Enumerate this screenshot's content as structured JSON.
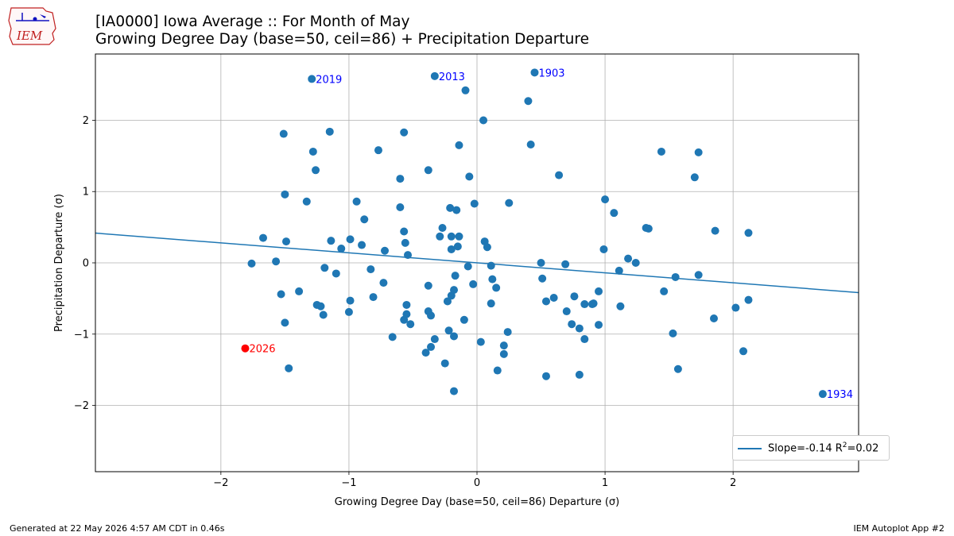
{
  "header": {
    "logo_text": "IEM",
    "title_line1": "[IA0000] Iowa Average :: For Month of May",
    "title_line2": "Growing Degree Day (base=50, ceil=86) + Precipitation Departure"
  },
  "footer": {
    "generated": "Generated at 22 May 2026 4:57 AM CDT in 0.46s",
    "app": "IEM Autoplot App #2"
  },
  "legend": {
    "slope_label": "Slope=-0.14 R",
    "r2_sup": "2",
    "r2_value": "=0.02"
  },
  "colors": {
    "point": "#1f77b4",
    "highlight": "#ff0000",
    "annotation": "#0000ff",
    "grid": "#b0b0b0",
    "fit_line": "#1f77b4"
  },
  "chart_data": {
    "type": "scatter",
    "xlabel": "Growing Degree Day (base=50, ceil=86) Departure (σ)",
    "ylabel": "Precipitation Departure (σ)",
    "xlim": [
      -2.98,
      2.98
    ],
    "ylim": [
      -2.93,
      2.93
    ],
    "xticks": [
      -2,
      -1,
      0,
      1,
      2
    ],
    "xtick_labels": [
      "−2",
      "−1",
      "0",
      "1",
      "2"
    ],
    "yticks": [
      -2,
      -1,
      0,
      1,
      2
    ],
    "ytick_labels": [
      "−2",
      "−1",
      "0",
      "1",
      "2"
    ],
    "grid": true,
    "fit": {
      "slope": -0.14,
      "r2": 0.02,
      "intercept": 0.0
    },
    "highlight": {
      "year": "2026",
      "x": -1.81,
      "y": -1.2
    },
    "annotations": [
      {
        "label": "2019",
        "x": -1.29,
        "y": 2.58
      },
      {
        "label": "2013",
        "x": -0.33,
        "y": 2.62
      },
      {
        "label": "1903",
        "x": 0.45,
        "y": 2.67
      },
      {
        "label": "1934",
        "x": 2.7,
        "y": -1.84
      }
    ],
    "points": [
      [
        -1.29,
        2.58
      ],
      [
        -0.33,
        2.62
      ],
      [
        0.45,
        2.67
      ],
      [
        2.7,
        -1.84
      ],
      [
        -0.09,
        2.42
      ],
      [
        0.4,
        2.27
      ],
      [
        0.05,
        2.0
      ],
      [
        -1.51,
        1.81
      ],
      [
        -1.15,
        1.84
      ],
      [
        -0.57,
        1.83
      ],
      [
        -1.28,
        1.56
      ],
      [
        -0.77,
        1.58
      ],
      [
        -0.14,
        1.65
      ],
      [
        0.42,
        1.66
      ],
      [
        1.44,
        1.56
      ],
      [
        1.73,
        1.55
      ],
      [
        -1.26,
        1.3
      ],
      [
        -0.38,
        1.3
      ],
      [
        -0.6,
        1.18
      ],
      [
        -0.06,
        1.21
      ],
      [
        0.64,
        1.23
      ],
      [
        1.7,
        1.2
      ],
      [
        -1.5,
        0.96
      ],
      [
        -1.33,
        0.86
      ],
      [
        -0.94,
        0.86
      ],
      [
        -0.6,
        0.78
      ],
      [
        -0.21,
        0.77
      ],
      [
        -0.16,
        0.74
      ],
      [
        -0.02,
        0.83
      ],
      [
        0.25,
        0.84
      ],
      [
        1.0,
        0.89
      ],
      [
        1.07,
        0.7
      ],
      [
        -0.88,
        0.61
      ],
      [
        -1.67,
        0.35
      ],
      [
        -1.49,
        0.3
      ],
      [
        -1.14,
        0.31
      ],
      [
        -0.99,
        0.33
      ],
      [
        -0.9,
        0.25
      ],
      [
        -0.57,
        0.44
      ],
      [
        -0.56,
        0.28
      ],
      [
        -0.27,
        0.49
      ],
      [
        -0.29,
        0.37
      ],
      [
        -0.2,
        0.37
      ],
      [
        -0.14,
        0.37
      ],
      [
        0.06,
        0.3
      ],
      [
        1.32,
        0.49
      ],
      [
        1.34,
        0.48
      ],
      [
        1.86,
        0.45
      ],
      [
        2.12,
        0.42
      ],
      [
        -1.06,
        0.2
      ],
      [
        -0.72,
        0.17
      ],
      [
        -0.54,
        0.11
      ],
      [
        -0.2,
        0.19
      ],
      [
        -0.15,
        0.23
      ],
      [
        0.08,
        0.22
      ],
      [
        0.99,
        0.19
      ],
      [
        -1.76,
        -0.01
      ],
      [
        -1.57,
        0.02
      ],
      [
        -1.19,
        -0.07
      ],
      [
        -1.1,
        -0.15
      ],
      [
        -0.83,
        -0.09
      ],
      [
        -0.07,
        -0.05
      ],
      [
        0.11,
        -0.04
      ],
      [
        0.5,
        0.0
      ],
      [
        0.69,
        -0.02
      ],
      [
        1.18,
        0.06
      ],
      [
        1.24,
        0.0
      ],
      [
        -1.53,
        -0.44
      ],
      [
        -1.39,
        -0.4
      ],
      [
        -1.25,
        -0.59
      ],
      [
        -1.22,
        -0.61
      ],
      [
        -1.2,
        -0.73
      ],
      [
        -0.99,
        -0.53
      ],
      [
        -1.0,
        -0.69
      ],
      [
        -0.81,
        -0.48
      ],
      [
        -0.73,
        -0.28
      ],
      [
        -0.55,
        -0.59
      ],
      [
        -0.57,
        -0.8
      ],
      [
        -0.55,
        -0.72
      ],
      [
        -0.52,
        -0.86
      ],
      [
        -0.38,
        -0.32
      ],
      [
        -0.38,
        -0.68
      ],
      [
        -0.36,
        -0.74
      ],
      [
        -0.23,
        -0.54
      ],
      [
        -0.2,
        -0.46
      ],
      [
        -0.18,
        -0.38
      ],
      [
        -0.17,
        -0.18
      ],
      [
        -0.1,
        -0.8
      ],
      [
        -0.03,
        -0.3
      ],
      [
        0.12,
        -0.23
      ],
      [
        0.15,
        -0.35
      ],
      [
        0.11,
        -0.57
      ],
      [
        0.51,
        -0.22
      ],
      [
        0.54,
        -0.54
      ],
      [
        0.6,
        -0.49
      ],
      [
        0.76,
        -0.47
      ],
      [
        0.7,
        -0.68
      ],
      [
        0.74,
        -0.86
      ],
      [
        0.8,
        -0.92
      ],
      [
        0.84,
        -0.58
      ],
      [
        0.9,
        -0.58
      ],
      [
        0.91,
        -0.57
      ],
      [
        0.95,
        -0.4
      ],
      [
        0.95,
        -0.87
      ],
      [
        1.12,
        -0.61
      ],
      [
        1.11,
        -0.11
      ],
      [
        1.46,
        -0.4
      ],
      [
        1.55,
        -0.2
      ],
      [
        1.73,
        -0.17
      ],
      [
        1.85,
        -0.78
      ],
      [
        2.02,
        -0.63
      ],
      [
        2.12,
        -0.52
      ],
      [
        -1.5,
        -0.84
      ],
      [
        -0.66,
        -1.04
      ],
      [
        -0.4,
        -1.26
      ],
      [
        -0.36,
        -1.18
      ],
      [
        -0.33,
        -1.07
      ],
      [
        -0.22,
        -0.95
      ],
      [
        -0.18,
        -1.03
      ],
      [
        0.03,
        -1.11
      ],
      [
        0.21,
        -1.16
      ],
      [
        0.21,
        -1.28
      ],
      [
        0.24,
        -0.97
      ],
      [
        0.84,
        -1.07
      ],
      [
        1.53,
        -0.99
      ],
      [
        2.08,
        -1.24
      ],
      [
        -1.47,
        -1.48
      ],
      [
        -0.25,
        -1.41
      ],
      [
        0.16,
        -1.51
      ],
      [
        0.54,
        -1.59
      ],
      [
        0.8,
        -1.57
      ],
      [
        1.57,
        -1.49
      ],
      [
        -0.18,
        -1.8
      ]
    ]
  }
}
